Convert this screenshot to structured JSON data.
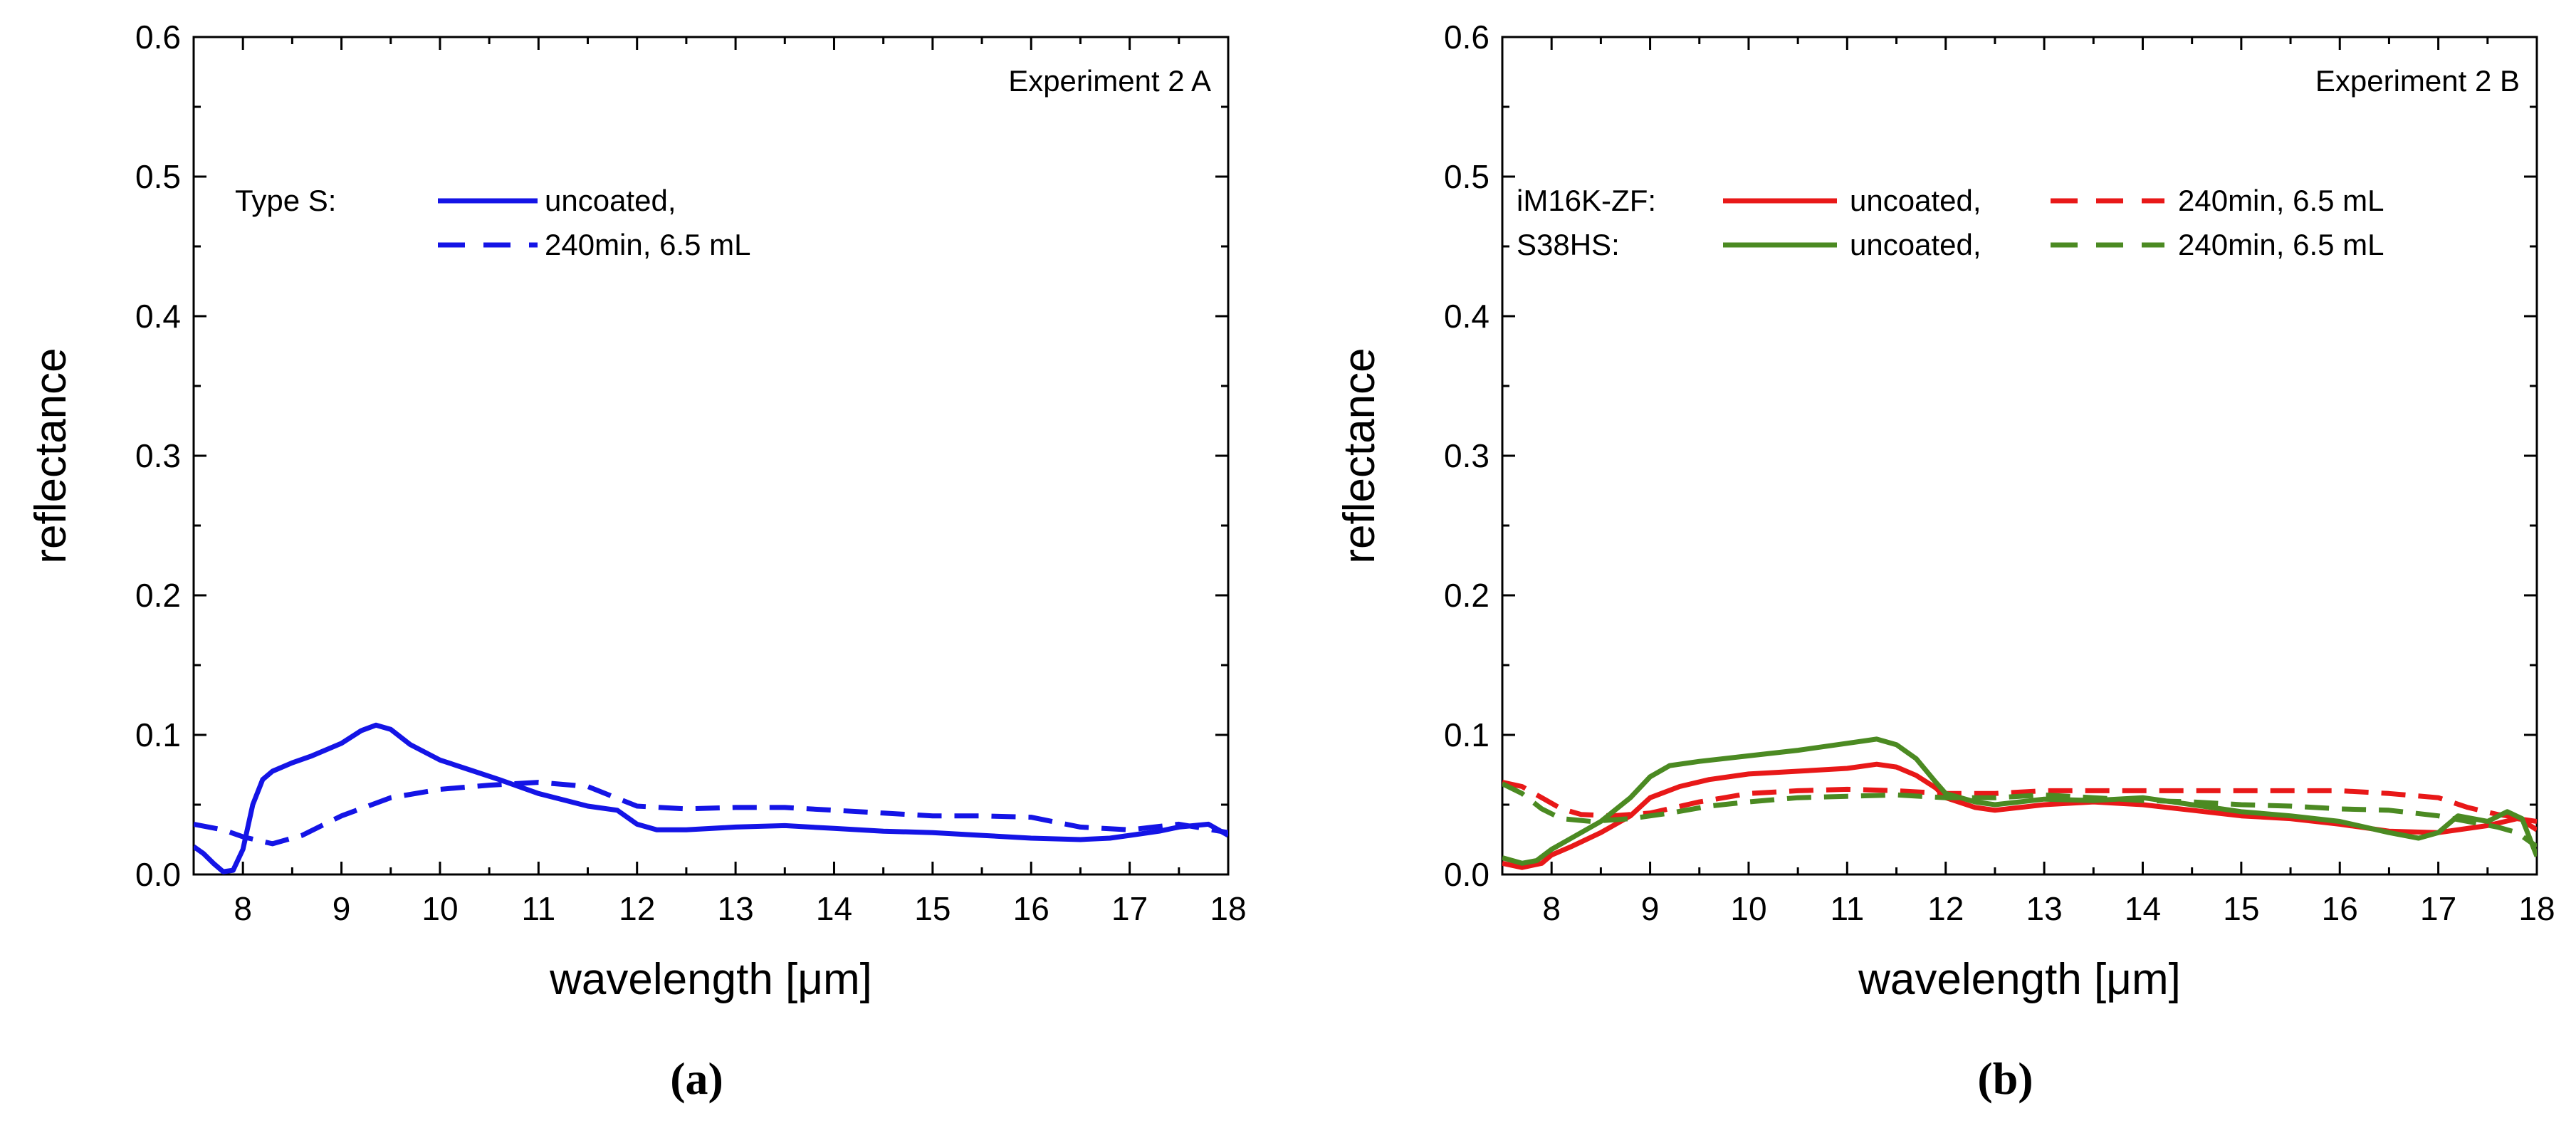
{
  "chart_data": [
    {
      "type": "line",
      "title": "Experiment 2 A",
      "caption": "(a)",
      "xlabel": "wavelength [μm]",
      "ylabel": "reflectance",
      "xlim": [
        7.5,
        18
      ],
      "ylim": [
        0.0,
        0.6
      ],
      "xticks": [
        8,
        9,
        10,
        11,
        12,
        13,
        14,
        15,
        16,
        17,
        18
      ],
      "yticks": [
        0.0,
        0.1,
        0.2,
        0.3,
        0.4,
        0.5,
        0.6
      ],
      "xtick_labels": [
        "8",
        "9",
        "10",
        "11",
        "12",
        "13",
        "14",
        "15",
        "16",
        "17",
        "18"
      ],
      "ytick_labels": [
        "0.0",
        "0.1",
        "0.2",
        "0.3",
        "0.4",
        "0.5",
        "0.6"
      ],
      "legend": {
        "groups": [
          {
            "label": "Type S:",
            "entries": [
              {
                "series": 0,
                "label": "uncoated,"
              },
              {
                "series": 1,
                "label": "240min, 6.5 mL"
              }
            ]
          }
        ]
      },
      "series": [
        {
          "name": "Type S uncoated",
          "color": "#1414e6",
          "dash": "solid",
          "x": [
            7.5,
            7.6,
            7.7,
            7.8,
            7.9,
            8.0,
            8.1,
            8.2,
            8.3,
            8.5,
            8.7,
            9.0,
            9.2,
            9.35,
            9.5,
            9.7,
            10.0,
            10.3,
            10.6,
            11.0,
            11.5,
            11.8,
            12.0,
            12.2,
            12.5,
            13.0,
            13.5,
            14.0,
            14.5,
            15.0,
            15.5,
            16.0,
            16.5,
            16.8,
            17.0,
            17.3,
            17.5,
            17.8,
            18.0
          ],
          "y": [
            0.02,
            0.015,
            0.008,
            0.002,
            0.003,
            0.018,
            0.05,
            0.068,
            0.074,
            0.08,
            0.085,
            0.094,
            0.103,
            0.107,
            0.104,
            0.093,
            0.082,
            0.075,
            0.068,
            0.058,
            0.049,
            0.046,
            0.036,
            0.032,
            0.032,
            0.034,
            0.035,
            0.033,
            0.031,
            0.03,
            0.028,
            0.026,
            0.025,
            0.026,
            0.028,
            0.031,
            0.034,
            0.036,
            0.028
          ]
        },
        {
          "name": "Type S 240min, 6.5 mL",
          "color": "#1414e6",
          "dash": "dashed",
          "x": [
            7.5,
            7.8,
            8.0,
            8.3,
            8.6,
            9.0,
            9.5,
            10.0,
            10.5,
            11.0,
            11.5,
            12.0,
            12.5,
            13.0,
            13.5,
            14.0,
            14.5,
            15.0,
            15.5,
            16.0,
            16.5,
            17.0,
            17.5,
            18.0
          ],
          "y": [
            0.036,
            0.032,
            0.027,
            0.022,
            0.028,
            0.042,
            0.055,
            0.061,
            0.064,
            0.066,
            0.063,
            0.049,
            0.047,
            0.048,
            0.048,
            0.046,
            0.044,
            0.042,
            0.042,
            0.041,
            0.034,
            0.032,
            0.036,
            0.03
          ]
        }
      ]
    },
    {
      "type": "line",
      "title": "Experiment 2 B",
      "caption": "(b)",
      "xlabel": "wavelength [μm]",
      "ylabel": "reflectance",
      "xlim": [
        7.5,
        18
      ],
      "ylim": [
        0.0,
        0.6
      ],
      "xticks": [
        8,
        9,
        10,
        11,
        12,
        13,
        14,
        15,
        16,
        17,
        18
      ],
      "yticks": [
        0.0,
        0.1,
        0.2,
        0.3,
        0.4,
        0.5,
        0.6
      ],
      "xtick_labels": [
        "8",
        "9",
        "10",
        "11",
        "12",
        "13",
        "14",
        "15",
        "16",
        "17",
        "18"
      ],
      "ytick_labels": [
        "0.0",
        "0.1",
        "0.2",
        "0.3",
        "0.4",
        "0.5",
        "0.6"
      ],
      "legend": {
        "groups": [
          {
            "label": "iM16K-ZF:",
            "entries": [
              {
                "series": 0,
                "label": "uncoated,"
              },
              {
                "series": 1,
                "label": "240min, 6.5 mL"
              }
            ]
          },
          {
            "label": "S38HS:",
            "entries": [
              {
                "series": 2,
                "label": "uncoated,"
              },
              {
                "series": 3,
                "label": "240min, 6.5 mL"
              }
            ]
          }
        ]
      },
      "series": [
        {
          "name": "iM16K-ZF uncoated",
          "color": "#e81818",
          "dash": "solid",
          "x": [
            7.5,
            7.7,
            7.9,
            8.0,
            8.2,
            8.5,
            8.8,
            9.0,
            9.3,
            9.6,
            10.0,
            10.5,
            11.0,
            11.3,
            11.5,
            11.7,
            11.9,
            12.0,
            12.3,
            12.5,
            13.0,
            13.5,
            14.0,
            14.5,
            15.0,
            15.5,
            16.0,
            16.5,
            17.0,
            17.5,
            17.8,
            18.0
          ],
          "y": [
            0.008,
            0.005,
            0.008,
            0.014,
            0.02,
            0.03,
            0.042,
            0.055,
            0.063,
            0.068,
            0.072,
            0.074,
            0.076,
            0.079,
            0.077,
            0.071,
            0.062,
            0.055,
            0.048,
            0.046,
            0.05,
            0.052,
            0.05,
            0.046,
            0.042,
            0.04,
            0.036,
            0.031,
            0.03,
            0.035,
            0.04,
            0.038
          ]
        },
        {
          "name": "iM16K-ZF 240min, 6.5 mL",
          "color": "#e81818",
          "dash": "dashed",
          "x": [
            7.5,
            7.7,
            7.9,
            8.1,
            8.3,
            8.6,
            9.0,
            9.5,
            10.0,
            10.5,
            11.0,
            11.5,
            12.0,
            12.5,
            13.0,
            13.5,
            14.0,
            14.5,
            15.0,
            15.5,
            16.0,
            16.5,
            17.0,
            17.3,
            17.6,
            17.8,
            18.0
          ],
          "y": [
            0.066,
            0.063,
            0.055,
            0.047,
            0.043,
            0.042,
            0.044,
            0.052,
            0.058,
            0.06,
            0.061,
            0.06,
            0.058,
            0.058,
            0.06,
            0.06,
            0.06,
            0.06,
            0.06,
            0.06,
            0.06,
            0.058,
            0.055,
            0.048,
            0.043,
            0.041,
            0.032
          ]
        },
        {
          "name": "S38HS uncoated",
          "color": "#4b8a22",
          "dash": "solid",
          "x": [
            7.5,
            7.7,
            7.85,
            8.0,
            8.2,
            8.5,
            8.8,
            9.0,
            9.2,
            9.5,
            10.0,
            10.5,
            11.0,
            11.3,
            11.5,
            11.7,
            11.9,
            12.0,
            12.3,
            12.5,
            13.0,
            13.5,
            14.0,
            14.5,
            15.0,
            15.5,
            16.0,
            16.5,
            16.8,
            17.0,
            17.2,
            17.5,
            17.7,
            17.85,
            18.0
          ],
          "y": [
            0.012,
            0.008,
            0.01,
            0.018,
            0.026,
            0.038,
            0.055,
            0.07,
            0.078,
            0.081,
            0.085,
            0.089,
            0.094,
            0.097,
            0.093,
            0.083,
            0.066,
            0.058,
            0.052,
            0.05,
            0.054,
            0.053,
            0.055,
            0.05,
            0.045,
            0.042,
            0.038,
            0.03,
            0.026,
            0.03,
            0.042,
            0.038,
            0.045,
            0.04,
            0.013
          ]
        },
        {
          "name": "S38HS 240min, 6.5 mL",
          "color": "#4b8a22",
          "dash": "dashed",
          "x": [
            7.5,
            7.7,
            7.9,
            8.1,
            8.4,
            8.8,
            9.2,
            9.6,
            10.0,
            10.5,
            11.0,
            11.5,
            12.0,
            12.5,
            13.0,
            13.5,
            14.0,
            14.5,
            15.0,
            15.5,
            16.0,
            16.5,
            17.0,
            17.3,
            17.6,
            17.8,
            18.0
          ],
          "y": [
            0.065,
            0.058,
            0.047,
            0.04,
            0.038,
            0.04,
            0.044,
            0.049,
            0.052,
            0.055,
            0.056,
            0.057,
            0.055,
            0.055,
            0.057,
            0.055,
            0.053,
            0.052,
            0.05,
            0.049,
            0.047,
            0.046,
            0.042,
            0.038,
            0.034,
            0.03,
            0.02
          ]
        }
      ]
    }
  ]
}
